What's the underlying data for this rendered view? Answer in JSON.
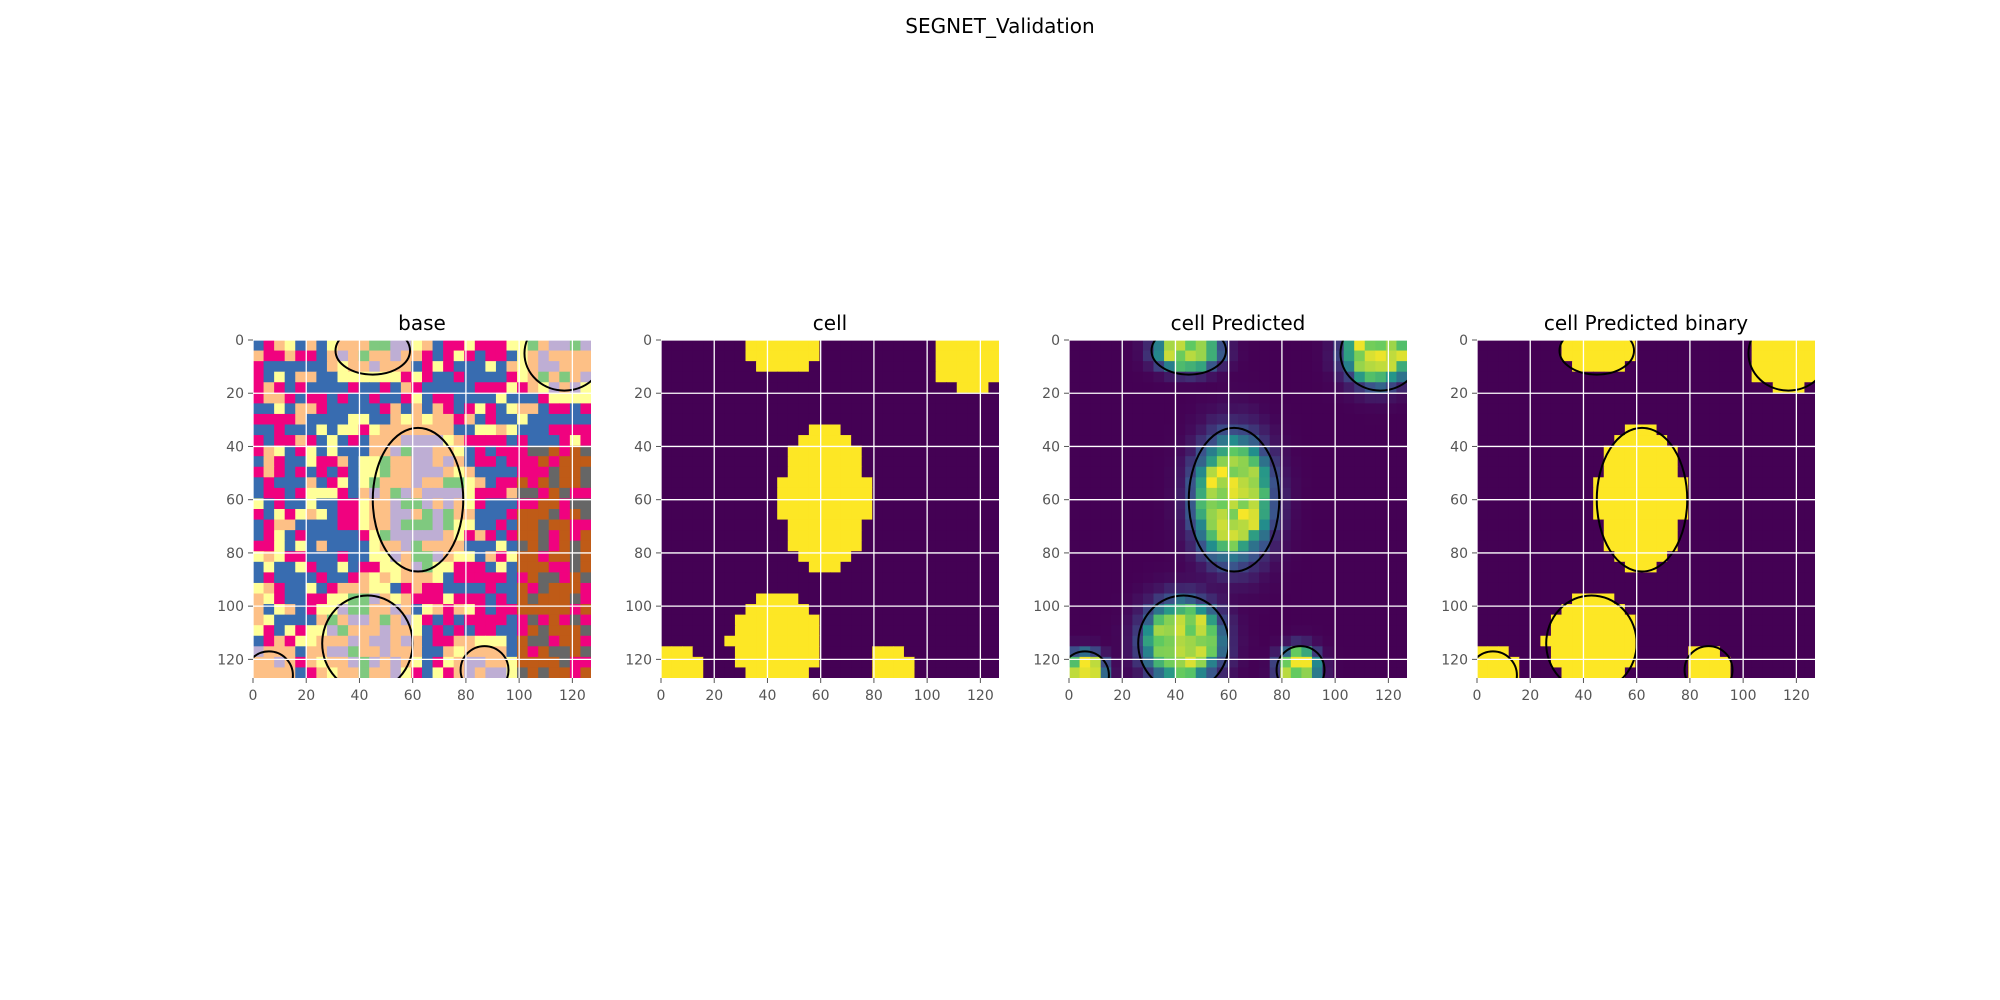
{
  "figure": {
    "title": "SEGNET_Validation"
  },
  "chart_data": [
    {
      "type": "heatmap",
      "title": "base",
      "colormap": "Accent",
      "image_size": [
        128,
        128
      ],
      "xlim": [
        0,
        127
      ],
      "ylim": [
        127,
        0
      ],
      "x_ticks": [
        0,
        20,
        40,
        60,
        80,
        100,
        120
      ],
      "y_ticks": [
        0,
        20,
        40,
        60,
        80,
        100,
        120
      ],
      "grid": true,
      "contour_color": "#000000"
    },
    {
      "type": "heatmap",
      "title": "cell",
      "colormap": "viridis",
      "image_size": [
        128,
        128
      ],
      "xlim": [
        0,
        127
      ],
      "ylim": [
        127,
        0
      ],
      "x_ticks": [
        0,
        20,
        40,
        60,
        80,
        100,
        120
      ],
      "y_ticks": [
        0,
        20,
        40,
        60,
        80,
        100,
        120
      ],
      "grid": true
    },
    {
      "type": "heatmap",
      "title": "cell Predicted",
      "colormap": "viridis",
      "image_size": [
        128,
        128
      ],
      "xlim": [
        0,
        127
      ],
      "ylim": [
        127,
        0
      ],
      "x_ticks": [
        0,
        20,
        40,
        60,
        80,
        100,
        120
      ],
      "y_ticks": [
        0,
        20,
        40,
        60,
        80,
        100,
        120
      ],
      "grid": true,
      "contour_color": "#000000"
    },
    {
      "type": "heatmap",
      "title": "cell Predicted binary",
      "colormap": "viridis",
      "image_size": [
        128,
        128
      ],
      "xlim": [
        0,
        127
      ],
      "ylim": [
        127,
        0
      ],
      "x_ticks": [
        0,
        20,
        40,
        60,
        80,
        100,
        120
      ],
      "y_ticks": [
        0,
        20,
        40,
        60,
        80,
        100,
        120
      ],
      "grid": true,
      "contour_color": "#000000"
    }
  ],
  "colors": {
    "viridis_low": "#440154",
    "viridis_mid": "#21918c",
    "viridis_high": "#fde725",
    "grid": "#ffffff",
    "tick_label": "#555555",
    "accent_palette": [
      "#386cb0",
      "#f0027f",
      "#fdc086",
      "#ffff99",
      "#beaed4",
      "#7fc97f",
      "#bf5b17",
      "#666666"
    ]
  }
}
